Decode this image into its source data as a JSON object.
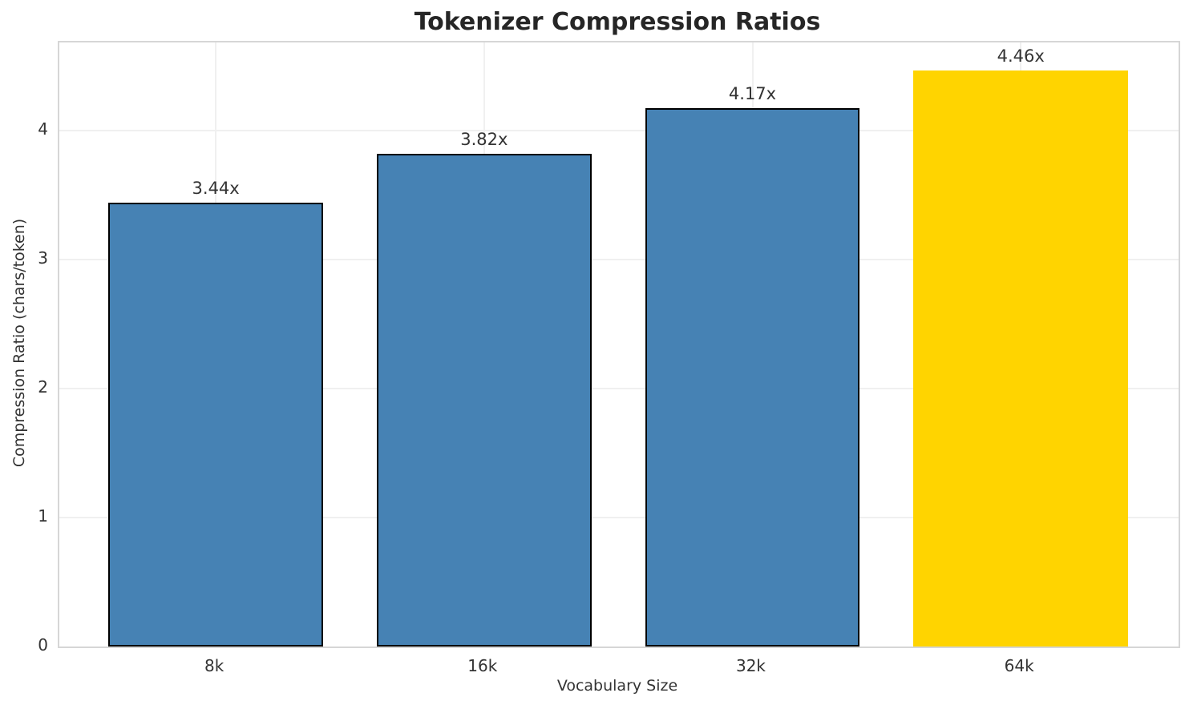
{
  "chart_data": {
    "type": "bar",
    "title": "Tokenizer Compression Ratios",
    "xlabel": "Vocabulary Size",
    "ylabel": "Compression Ratio (chars/token)",
    "categories": [
      "8k",
      "16k",
      "32k",
      "64k"
    ],
    "values": [
      3.44,
      3.82,
      4.17,
      4.46
    ],
    "bar_labels": [
      "3.44x",
      "3.82x",
      "4.17x",
      "4.46x"
    ],
    "yticks": [
      0,
      1,
      2,
      3,
      4
    ],
    "ylim": [
      0,
      4.68
    ],
    "grid": true,
    "legend": "none",
    "bar_colors": [
      "#4682B4",
      "#4682B4",
      "#4682B4",
      "#FFD400"
    ],
    "bar_edge_colors": [
      "#000000",
      "#000000",
      "#000000",
      "none"
    ],
    "colors": {
      "default_bar": "#4682B4",
      "highlight_bar": "#FFD400",
      "bar_edge": "#000000",
      "spine": "#d6d6d6",
      "grid": "#f0f0f0",
      "title_text": "#262626",
      "tick_text": "#333333"
    }
  }
}
